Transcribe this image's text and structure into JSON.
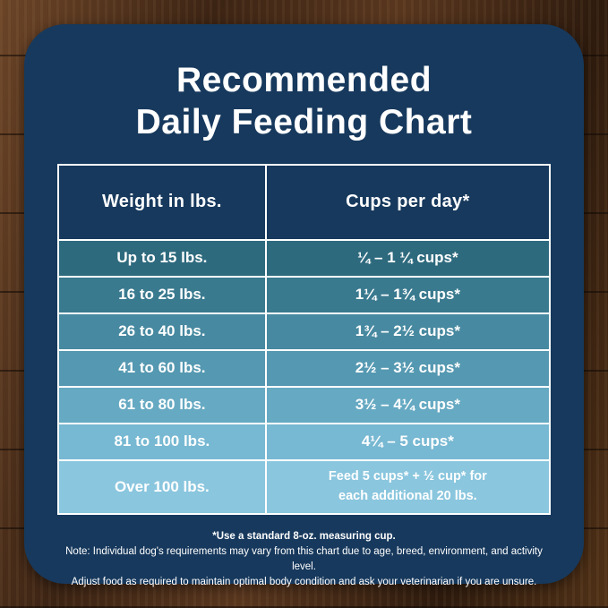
{
  "title": {
    "line1": "Recommended",
    "line2": "Daily Feeding Chart"
  },
  "table": {
    "headers": {
      "weight": "Weight in lbs.",
      "cups": "Cups per day*"
    },
    "rows": [
      {
        "weight": "Up to 15 lbs.",
        "cups": "¼ – 1 ¼ cups*",
        "color": "#2e6a7e"
      },
      {
        "weight": "16 to 25 lbs.",
        "cups": "1¼ – 1¾  cups*",
        "color": "#3a7a8f"
      },
      {
        "weight": "26 to 40 lbs.",
        "cups": "1¾ – 2½ cups*",
        "color": "#4789a0"
      },
      {
        "weight": "41 to 60 lbs.",
        "cups": "2½ – 3½ cups*",
        "color": "#5598b1"
      },
      {
        "weight": "61 to 80 lbs.",
        "cups": "3½ – 4¼ cups*",
        "color": "#66a9c2"
      },
      {
        "weight": "81 to 100 lbs.",
        "cups": "4¼ – 5 cups*",
        "color": "#77b8d2"
      },
      {
        "weight": "Over 100 lbs.",
        "cups_line1": "Feed 5 cups* + ½ cup* for",
        "cups_line2": "each additional 20 lbs.",
        "color": "#8ac6de"
      }
    ]
  },
  "footnotes": {
    "line1": "*Use a standard 8-oz. measuring cup.",
    "line2": "Note: Individual dog's requirements may vary from this chart due to age, breed, environment, and activity level.",
    "line3": "Adjust food as required to maintain optimal body condition and ask your veterinarian if you are unsure."
  },
  "colors": {
    "card_background": "#17395d",
    "header_row_background": "#17395d",
    "table_border": "#ffffff",
    "text": "#ffffff"
  },
  "chart_data": {
    "type": "table",
    "title": "Recommended Daily Feeding Chart",
    "columns": [
      "Weight in lbs.",
      "Cups per day*"
    ],
    "rows": [
      [
        "Up to 15 lbs.",
        "¼ – 1 ¼ cups*"
      ],
      [
        "16 to 25 lbs.",
        "1¼ – 1¾ cups*"
      ],
      [
        "26 to 40 lbs.",
        "1¾ – 2½ cups*"
      ],
      [
        "41 to 60 lbs.",
        "2½ – 3½ cups*"
      ],
      [
        "61 to 80 lbs.",
        "3½ – 4¼ cups*"
      ],
      [
        "81 to 100 lbs.",
        "4¼ – 5 cups*"
      ],
      [
        "Over 100 lbs.",
        "Feed 5 cups* + ½ cup* for each additional 20 lbs."
      ]
    ],
    "footnote": "*Use a standard 8-oz. measuring cup."
  }
}
